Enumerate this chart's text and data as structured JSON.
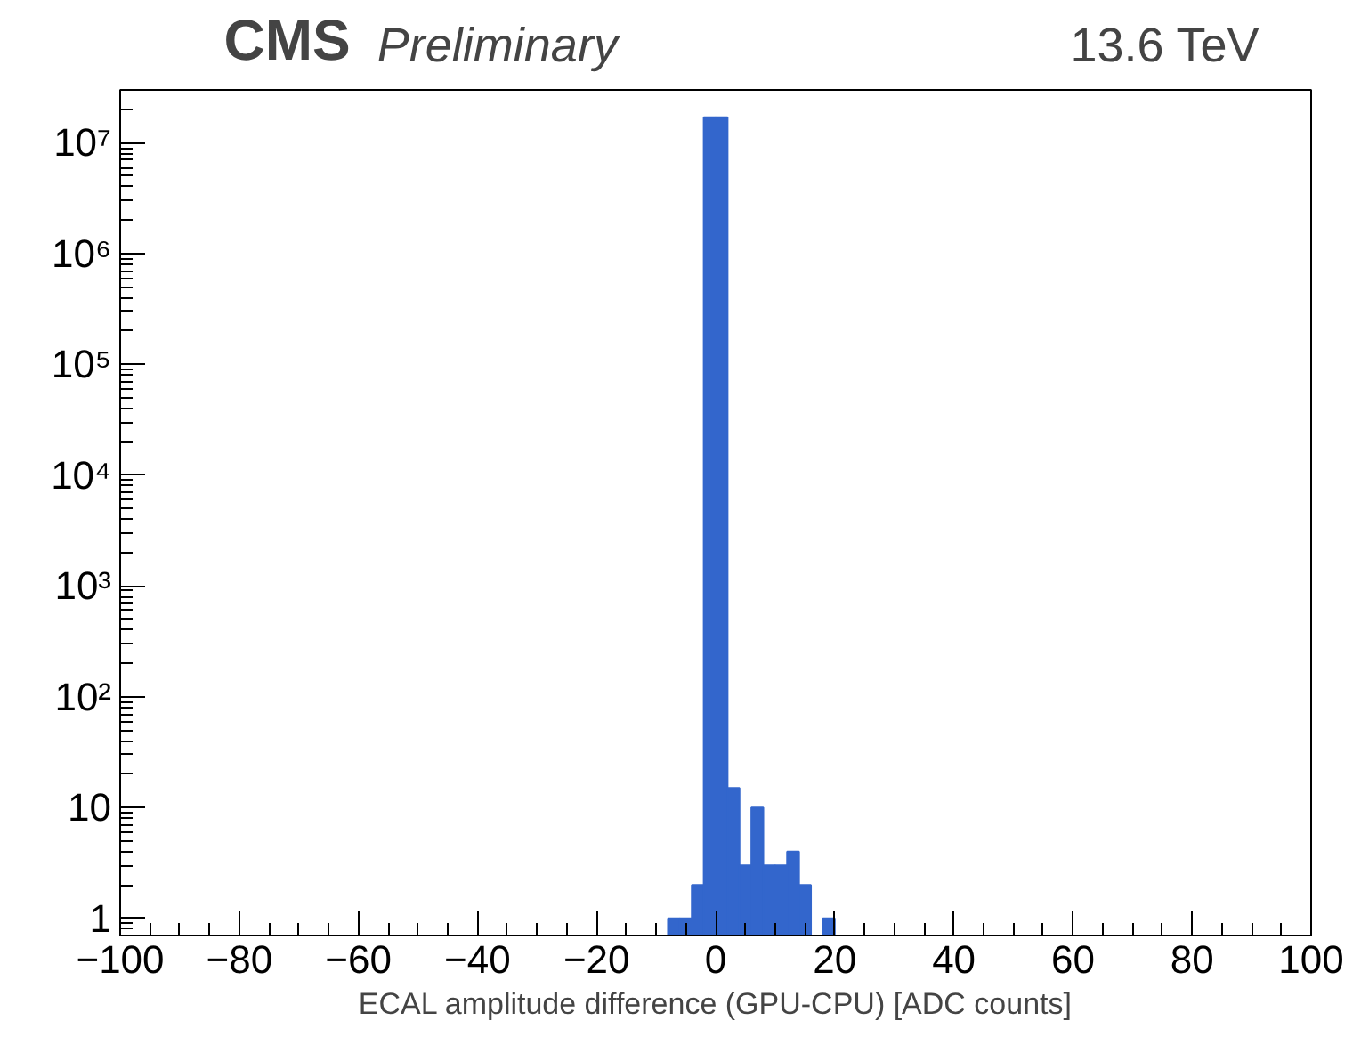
{
  "chart_data": {
    "type": "histogram",
    "title": "CMS",
    "subtitle": "Preliminary",
    "annotations": [
      "13.6 TeV"
    ],
    "xlabel": "ECAL amplitude difference (GPU-CPU) [ADC counts]",
    "bins": [
      -8,
      -6,
      -4,
      -2,
      0,
      2,
      4,
      6,
      8,
      10,
      12,
      14,
      16,
      18,
      20
    ],
    "values": [
      1,
      1,
      2,
      17000000,
      17000000,
      15,
      3,
      10,
      3,
      3,
      4,
      2,
      null,
      1
    ],
    "color": "#3366cc",
    "log": "y",
    "grid": false,
    "xlim": [
      -100,
      100
    ],
    "ylim": [
      0.7,
      30000000
    ],
    "xticks": [
      {
        "value": -100,
        "label": "−100"
      },
      {
        "value": -80,
        "label": "−80"
      },
      {
        "value": -60,
        "label": "−60"
      },
      {
        "value": -40,
        "label": "−40"
      },
      {
        "value": -20,
        "label": "−20"
      },
      0,
      20,
      40,
      60,
      80,
      100
    ],
    "yticks": [
      1,
      10,
      {
        "value": 100,
        "label": "10²"
      },
      {
        "value": 1000,
        "label": "10³"
      },
      {
        "value": 10000,
        "label": "10⁴"
      },
      {
        "value": 100000,
        "label": "10⁵"
      },
      {
        "value": 1000000,
        "label": "10⁶"
      },
      {
        "value": 10000000,
        "label": "10⁷"
      }
    ]
  }
}
